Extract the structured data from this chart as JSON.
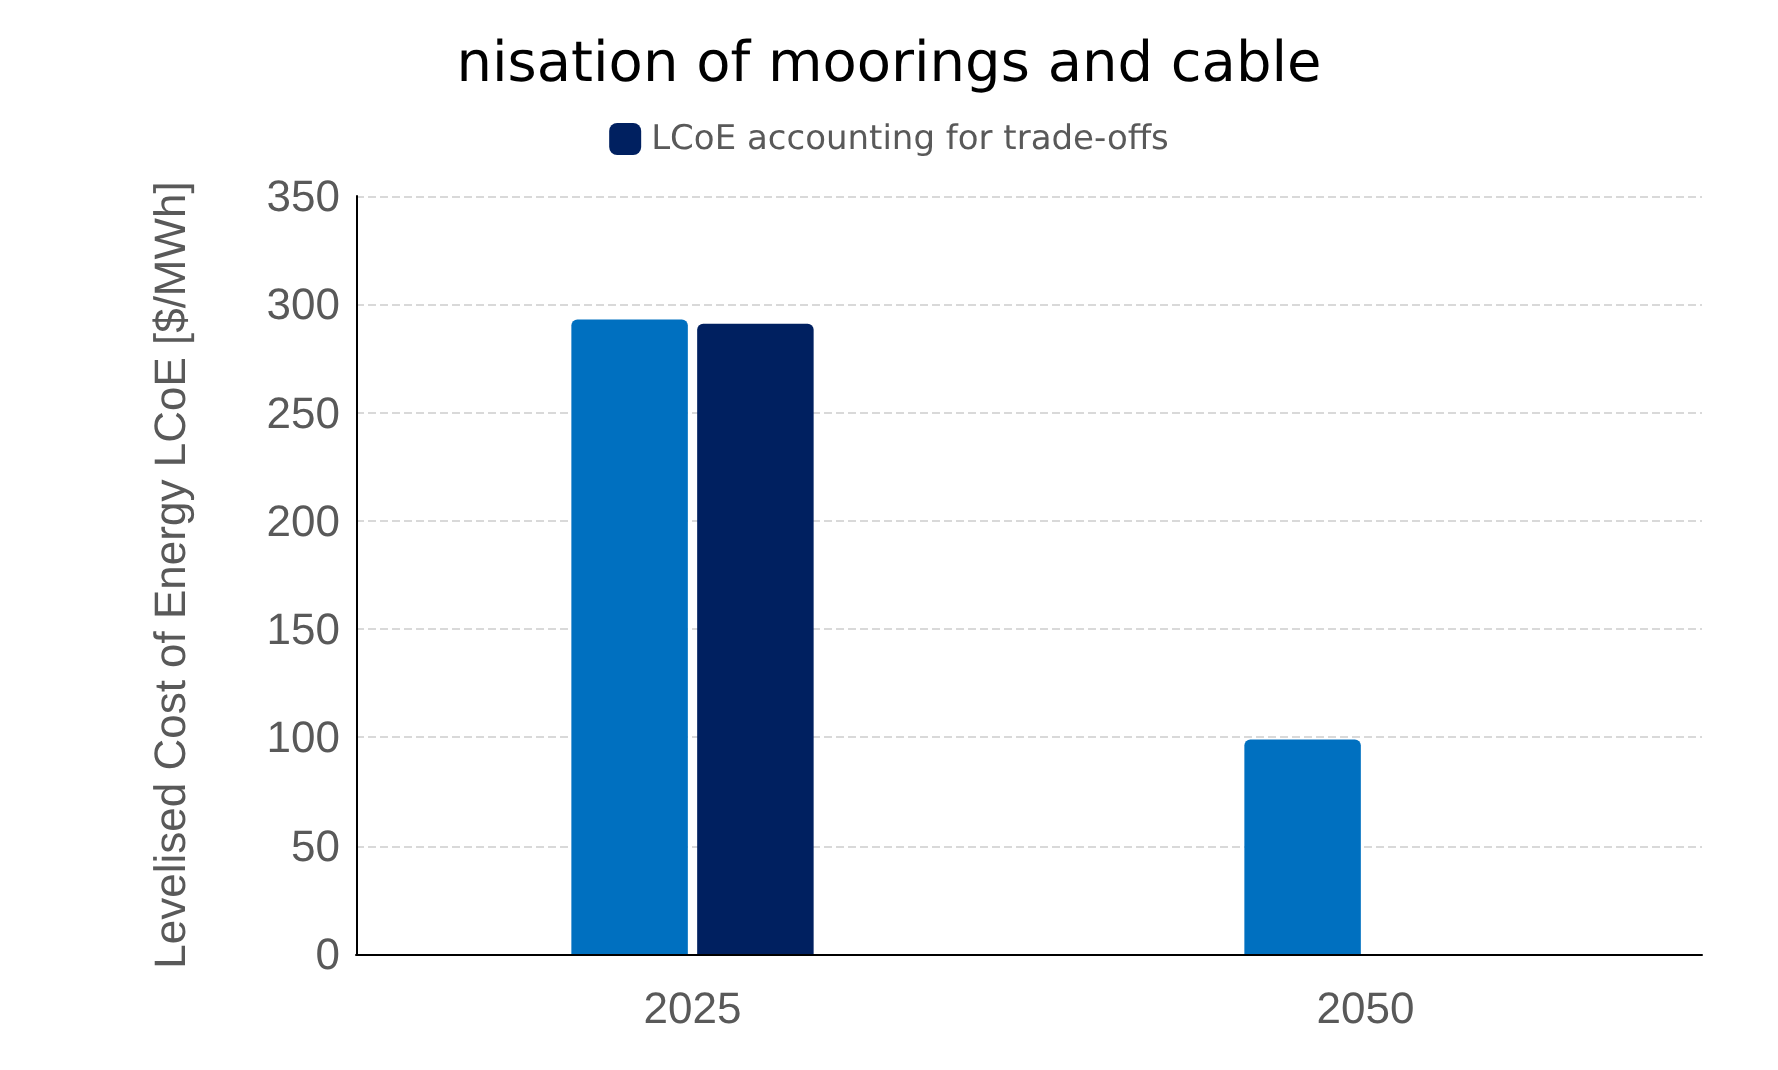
{
  "chart_data": {
    "type": "bar",
    "title": "nisation of moorings and cable",
    "ylabel": "Levelised Cost of Energy LCoE [$/MWh]",
    "categories": [
      "2025",
      "2050"
    ],
    "series": [
      {
        "color": "#0070c0",
        "values": [
          293,
          99
        ]
      },
      {
        "name": "LCoE accounting for trade-offs",
        "color": "#002060",
        "values": [
          291,
          null
        ]
      }
    ],
    "ylim": [
      0,
      350
    ],
    "yticks": [
      0,
      50,
      100,
      150,
      200,
      250,
      300,
      350
    ],
    "grid": "y",
    "legend": "top"
  }
}
